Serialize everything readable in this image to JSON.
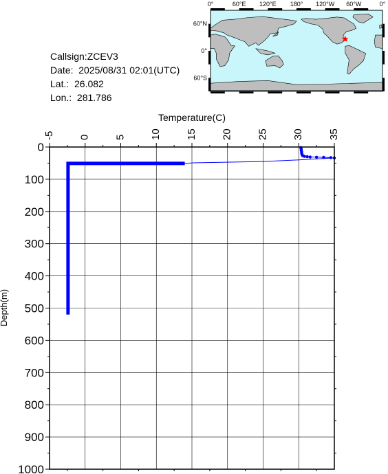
{
  "info": {
    "callsign": "Callsign:ZCEV3",
    "date": "Date:  2025/08/31 02:01(UTC)",
    "lat": "Lat.:  26.082",
    "lon": "Lon.:  281.786"
  },
  "map": {
    "lon_labels": [
      "0°",
      "60°E",
      "120°E",
      "180°",
      "120°W",
      "60°W",
      "0°"
    ],
    "lat_labels": [
      "60°N",
      "0°",
      "60°S"
    ],
    "station_lon": 281.786,
    "station_lat": 26.082,
    "colors": {
      "ocean": "#c8f6fa",
      "land": "#bebebe",
      "marker": "#ff0000"
    }
  },
  "chart_data": {
    "type": "line",
    "xlabel": "Temperature(C)",
    "ylabel": "Depth(m)",
    "xlim": [
      -5,
      35
    ],
    "ylim": [
      0,
      1000
    ],
    "y_inverted": true,
    "x_ticks": [
      -5,
      0,
      5,
      10,
      15,
      20,
      25,
      30,
      35
    ],
    "y_ticks": [
      0,
      100,
      200,
      300,
      400,
      500,
      600,
      700,
      800,
      900,
      1000
    ],
    "x_tick_labels": [
      "-5",
      "0",
      "5",
      "10",
      "15",
      "20",
      "25",
      "30",
      "35"
    ],
    "y_tick_labels": [
      "0",
      "100",
      "200",
      "300",
      "400",
      "500",
      "600",
      "700",
      "800",
      "900",
      "1000"
    ],
    "grid": true,
    "line_color": "#0000ff",
    "series": [
      {
        "values": [
          {
            "t": 30.3,
            "d": 2
          },
          {
            "t": 30.35,
            "d": 6
          },
          {
            "t": 30.35,
            "d": 10
          },
          {
            "t": 30.4,
            "d": 14
          },
          {
            "t": 30.4,
            "d": 18
          },
          {
            "t": 30.45,
            "d": 22
          },
          {
            "t": 30.5,
            "d": 25
          },
          {
            "t": 30.55,
            "d": 27
          },
          {
            "t": 30.8,
            "d": 29
          },
          {
            "t": 31.2,
            "d": 30
          },
          {
            "t": 31.6,
            "d": 31
          },
          {
            "t": 32.5,
            "d": 31.5
          },
          {
            "t": 33.5,
            "d": 32
          },
          {
            "t": 34.5,
            "d": 33
          },
          {
            "t": 35,
            "d": 34
          },
          {
            "t": 30,
            "d": 40
          },
          {
            "t": 25,
            "d": 45
          },
          {
            "t": 15.2,
            "d": 49
          },
          {
            "t": 14,
            "d": 51
          },
          {
            "t": -2.4,
            "d": 51
          },
          {
            "t": -2.4,
            "d": 100
          },
          {
            "t": -2.4,
            "d": 200
          },
          {
            "t": -2.4,
            "d": 300
          },
          {
            "t": -2.4,
            "d": 400
          },
          {
            "t": -2.4,
            "d": 500
          },
          {
            "t": -2.4,
            "d": 520
          }
        ]
      }
    ]
  }
}
